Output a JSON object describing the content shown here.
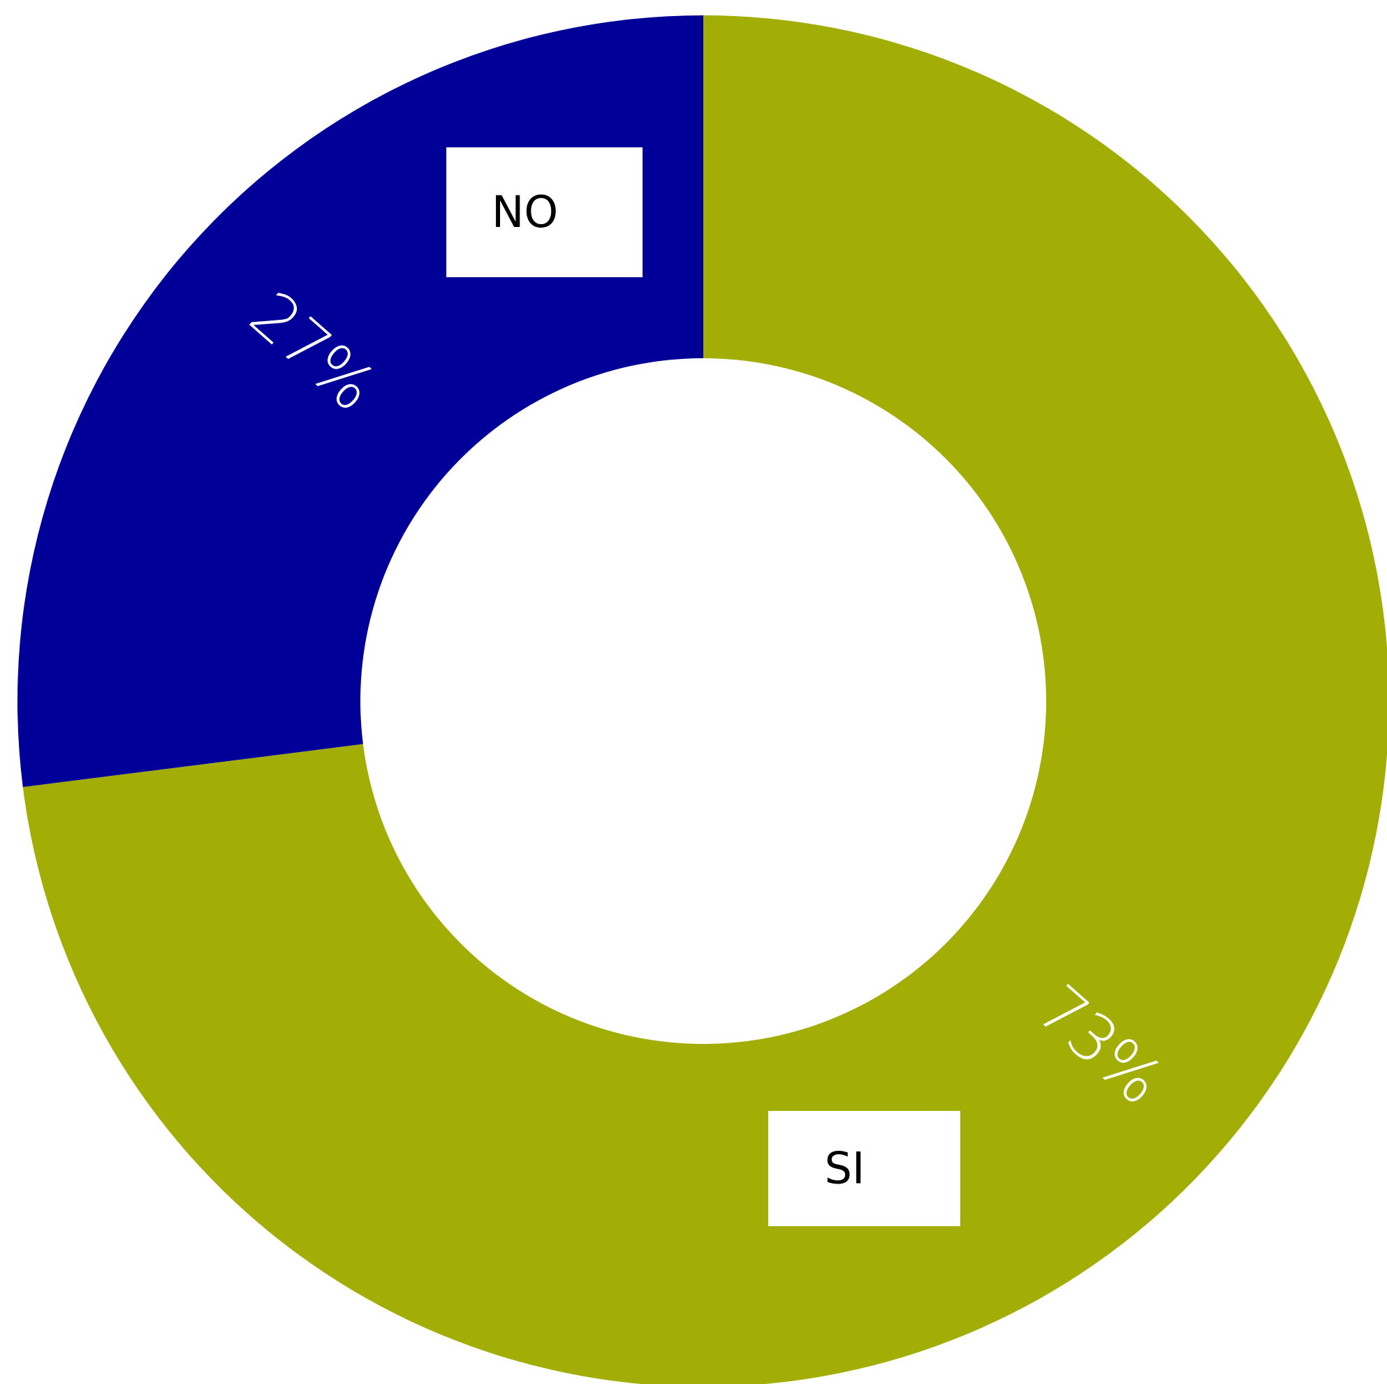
{
  "chart_data": {
    "type": "doughnut",
    "categories": [
      "SI",
      "NO"
    ],
    "values": [
      73,
      27
    ],
    "value_labels": [
      "73%",
      "27%"
    ],
    "colors": [
      "#a2ad05",
      "#000099"
    ]
  }
}
